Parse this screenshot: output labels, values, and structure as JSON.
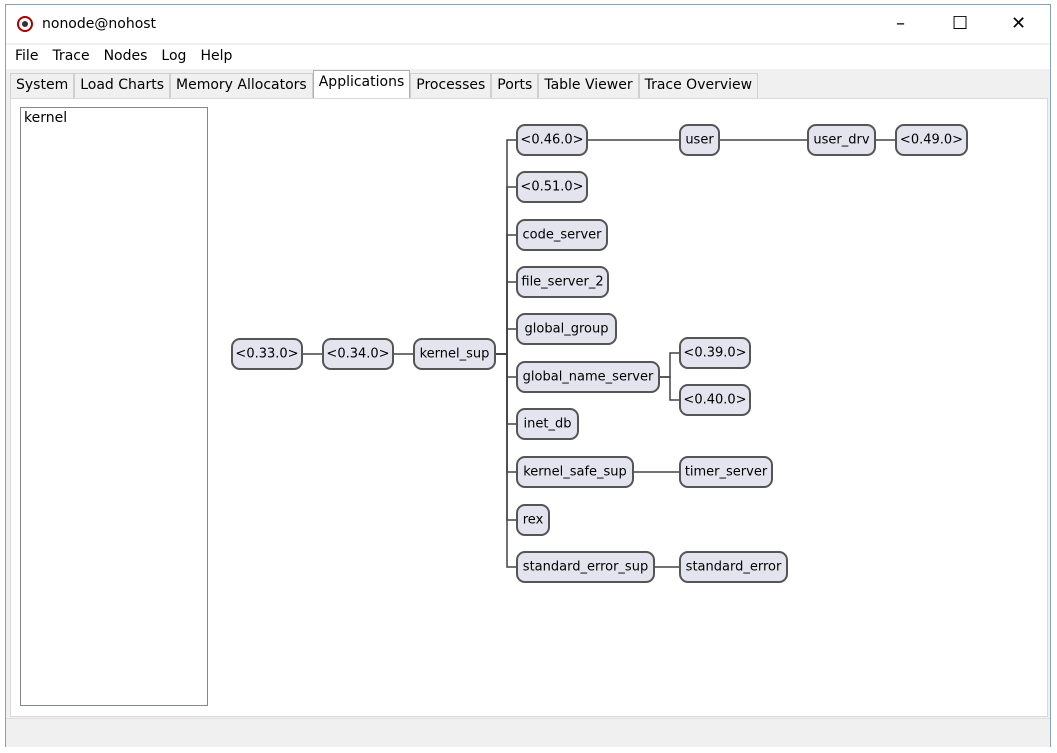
{
  "window": {
    "title": "nonode@nohost"
  },
  "menu": [
    "File",
    "Trace",
    "Nodes",
    "Log",
    "Help"
  ],
  "tabs": [
    "System",
    "Load Charts",
    "Memory Allocators",
    "Applications",
    "Processes",
    "Ports",
    "Table Viewer",
    "Trace Overview"
  ],
  "active_tab": 3,
  "app_list": [
    "kernel"
  ],
  "tree": {
    "nodes": [
      {
        "label": "<0.33.0>"
      },
      {
        "label": "<0.34.0>"
      },
      {
        "label": "kernel_sup"
      },
      {
        "label": "<0.46.0>"
      },
      {
        "label": "user"
      },
      {
        "label": "user_drv"
      },
      {
        "label": "<0.49.0>"
      },
      {
        "label": "<0.51.0>"
      },
      {
        "label": "code_server"
      },
      {
        "label": "file_server_2"
      },
      {
        "label": "global_group"
      },
      {
        "label": "global_name_server"
      },
      {
        "label": "<0.39.0>"
      },
      {
        "label": "<0.40.0>"
      },
      {
        "label": "inet_db"
      },
      {
        "label": "kernel_safe_sup"
      },
      {
        "label": "timer_server"
      },
      {
        "label": "rex"
      },
      {
        "label": "standard_error_sup"
      },
      {
        "label": "standard_error"
      }
    ]
  }
}
